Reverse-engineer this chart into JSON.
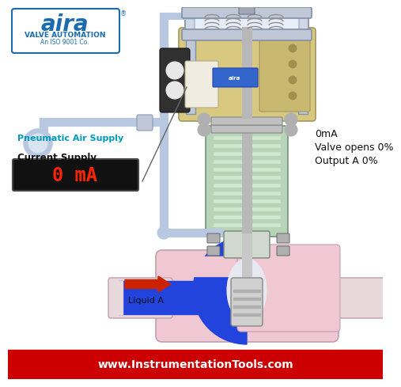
{
  "bg_color": "#ffffff",
  "bottom_bar_color": "#cc0000",
  "bottom_text": "www.InstrumentationTools.com",
  "bottom_text_color": "#ffffff",
  "label_current_supply": "Current Supply",
  "label_pneumatic": "Pneumatic Air Supply",
  "label_liquid": "Liquid A",
  "label_0mA": "0mA",
  "label_valve_opens": "Valve opens 0%",
  "label_output": "Output A 0%",
  "display_text": "0 mA",
  "display_bg": "#111111",
  "display_text_color": "#ff2200",
  "logo_border_color": "#1a6cb0",
  "logo_text": "aira",
  "logo_sub1": "VALVE AUTOMATION",
  "logo_sub2": "An ISO 9001 Co.",
  "pipe_color": "#b8c8e0",
  "pipe_edge": "#8898b8",
  "valve_body_color": "#f0c8d4",
  "valve_body_edge": "#c0a0b0",
  "valve_inner_color": "#2244dd",
  "stem_color": "#cccccc",
  "stem_edge": "#888888",
  "spring_color": "#909090",
  "spring_box_color": "#d0d8e8",
  "spring_box_edge": "#8090a8",
  "actuator_color": "#d8c880",
  "actuator_edge": "#a09860",
  "positioner_color": "#e8e4d0",
  "positioner_edge": "#b0a888",
  "green_body_color": "#a8cca8",
  "green_body_edge": "#608060",
  "arrow_color": "#cc2200",
  "text_color_black": "#111111",
  "text_color_cyan": "#0099bb",
  "dark_filter_color": "#444444",
  "bolt_color": "#aaaaaa",
  "flange_color": "#e8d8dc",
  "yoke_color": "#c0c8d8",
  "yoke_edge": "#8090a8"
}
